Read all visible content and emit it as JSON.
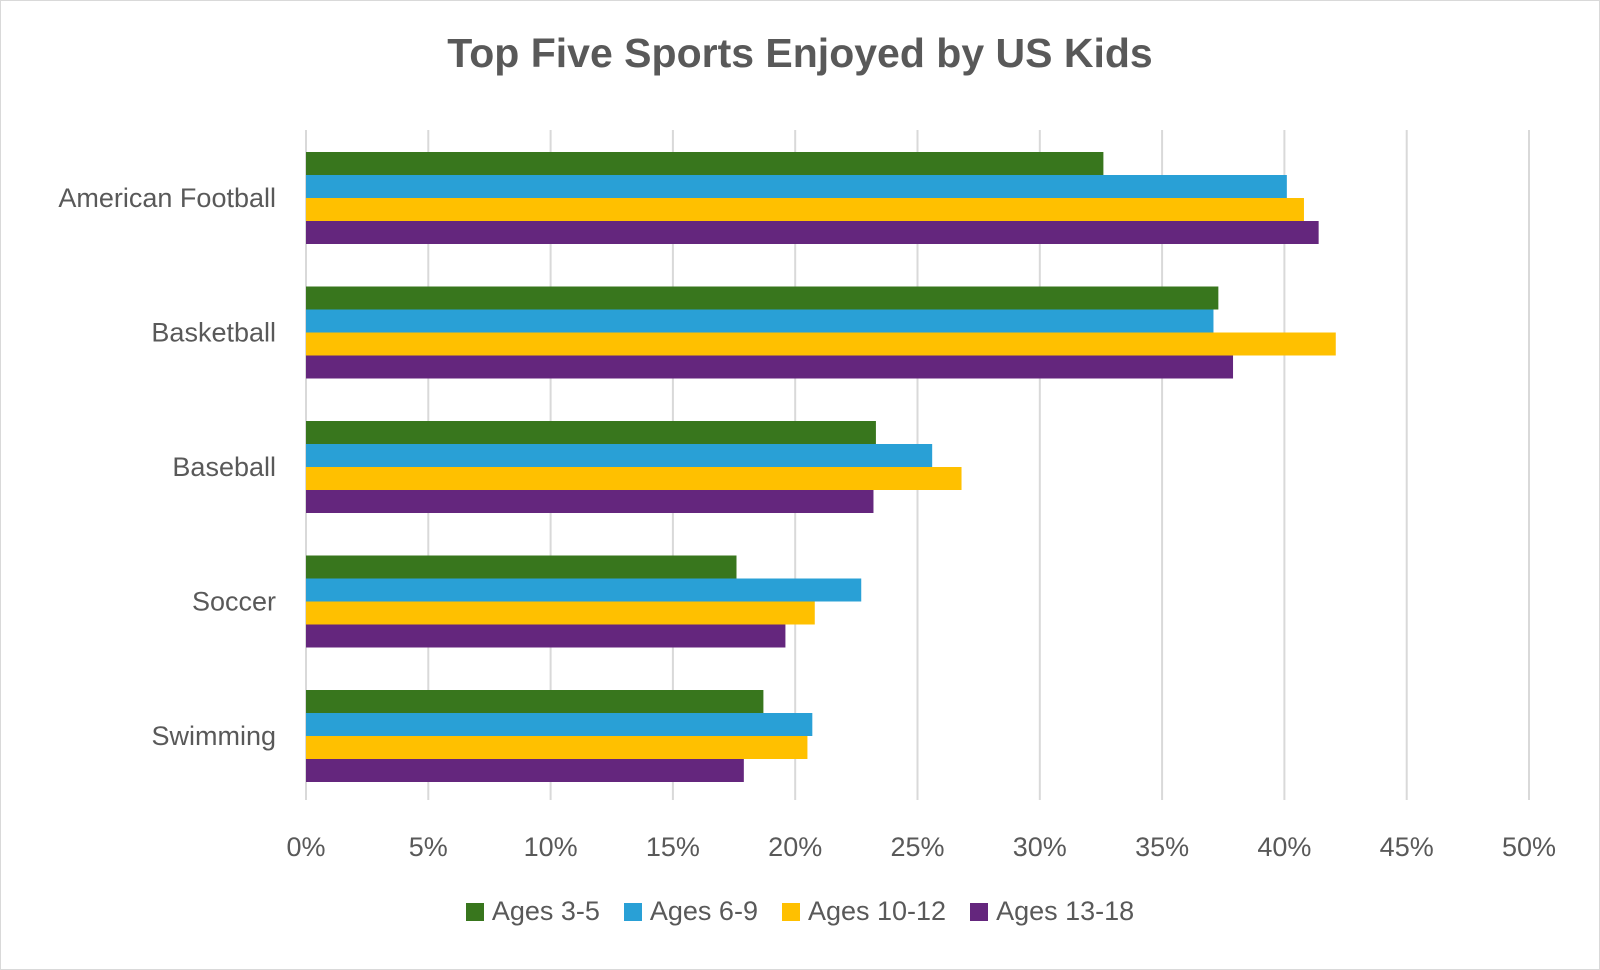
{
  "chart_data": {
    "type": "bar",
    "orientation": "horizontal",
    "title": "Top Five Sports Enjoyed by US Kids",
    "categories": [
      "American Football",
      "Basketball",
      "Baseball",
      "Soccer",
      "Swimming"
    ],
    "series": [
      {
        "name": "Ages 3-5",
        "color": "#38761d",
        "values": [
          32.6,
          37.3,
          23.3,
          17.6,
          18.7
        ]
      },
      {
        "name": "Ages 6-9",
        "color": "#29a0d6",
        "values": [
          40.1,
          37.1,
          25.6,
          22.7,
          20.7
        ]
      },
      {
        "name": "Ages 10-12",
        "color": "#ffc000",
        "values": [
          40.8,
          42.1,
          26.8,
          20.8,
          20.5
        ]
      },
      {
        "name": "Ages 13-18",
        "color": "#64267d",
        "values": [
          41.4,
          37.9,
          23.2,
          19.6,
          17.9
        ]
      }
    ],
    "x_ticks": [
      "0%",
      "5%",
      "10%",
      "15%",
      "20%",
      "25%",
      "30%",
      "35%",
      "40%",
      "45%",
      "50%"
    ],
    "xlim": [
      0,
      50
    ],
    "grid": "vertical",
    "legend_position": "bottom"
  }
}
